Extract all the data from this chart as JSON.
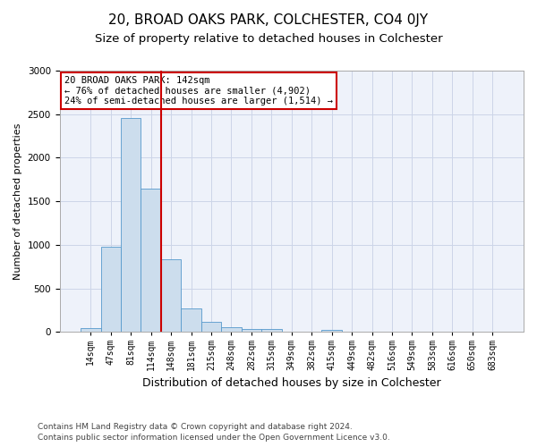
{
  "title": "20, BROAD OAKS PARK, COLCHESTER, CO4 0JY",
  "subtitle": "Size of property relative to detached houses in Colchester",
  "xlabel": "Distribution of detached houses by size in Colchester",
  "ylabel": "Number of detached properties",
  "categories": [
    "14sqm",
    "47sqm",
    "81sqm",
    "114sqm",
    "148sqm",
    "181sqm",
    "215sqm",
    "248sqm",
    "282sqm",
    "315sqm",
    "349sqm",
    "382sqm",
    "415sqm",
    "449sqm",
    "482sqm",
    "516sqm",
    "549sqm",
    "583sqm",
    "616sqm",
    "650sqm",
    "683sqm"
  ],
  "values": [
    50,
    980,
    2460,
    1650,
    840,
    270,
    120,
    55,
    40,
    40,
    0,
    0,
    30,
    0,
    0,
    0,
    0,
    0,
    0,
    0,
    0
  ],
  "bar_color": "#ccdded",
  "bar_edge_color": "#5599cc",
  "grid_color": "#ccd5e8",
  "background_color": "#eef2fa",
  "annotation_box_text": "20 BROAD OAKS PARK: 142sqm\n← 76% of detached houses are smaller (4,902)\n24% of semi-detached houses are larger (1,514) →",
  "annotation_box_color": "#ffffff",
  "annotation_box_edge_color": "#cc0000",
  "vline_x_index": 3.5,
  "vline_color": "#cc0000",
  "ylim": [
    0,
    3000
  ],
  "yticks": [
    0,
    500,
    1000,
    1500,
    2000,
    2500,
    3000
  ],
  "footer_line1": "Contains HM Land Registry data © Crown copyright and database right 2024.",
  "footer_line2": "Contains public sector information licensed under the Open Government Licence v3.0.",
  "title_fontsize": 11,
  "subtitle_fontsize": 9.5,
  "xlabel_fontsize": 9,
  "ylabel_fontsize": 8,
  "footer_fontsize": 6.5,
  "tick_fontsize": 7,
  "ytick_fontsize": 7.5,
  "annotation_fontsize": 7.5
}
